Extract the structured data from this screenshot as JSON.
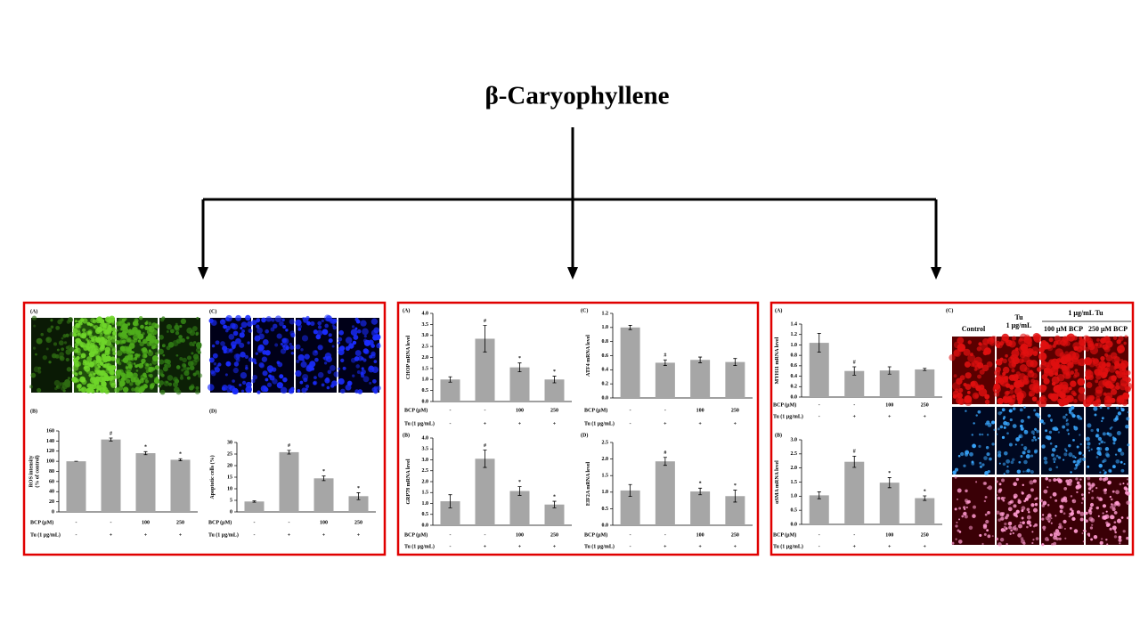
{
  "title": "β-Caryophyllene",
  "chart_data": [
    {
      "type": "bar",
      "label": "(B)",
      "y_label": "ROS intensity\n(% of control)",
      "ylim": [
        0,
        160
      ],
      "yticks": [
        0,
        20,
        40,
        60,
        80,
        100,
        120,
        140,
        160
      ],
      "values": [
        100,
        143,
        116,
        103
      ],
      "errors": [
        0,
        3,
        3,
        2
      ],
      "markers": [
        null,
        "#",
        "*",
        "*"
      ],
      "color": "#a6a6a6",
      "rows": [
        {
          "name": "BCP (μM)",
          "categories": [
            "-",
            "-",
            "100",
            "250"
          ]
        },
        {
          "name": "Tu (1 μg/mL)",
          "categories": [
            "-",
            "+",
            "+",
            "+"
          ]
        }
      ]
    },
    {
      "type": "bar",
      "label": "(D)",
      "y_label": "Apoptotic cells (%)",
      "ylim": [
        0,
        30
      ],
      "yticks": [
        0,
        5,
        10,
        15,
        20,
        25,
        30
      ],
      "values": [
        4.5,
        25.8,
        14.5,
        6.8
      ],
      "errors": [
        0.3,
        0.8,
        1.0,
        1.5
      ],
      "markers": [
        null,
        "#",
        "*",
        "*"
      ],
      "color": "#a6a6a6",
      "rows": [
        {
          "name": "BCP (μM)",
          "categories": [
            "-",
            "-",
            "100",
            "250"
          ]
        },
        {
          "name": "Tu (1 μg/mL)",
          "categories": [
            "-",
            "+",
            "+",
            "+"
          ]
        }
      ]
    },
    {
      "type": "bar",
      "label": "(A)",
      "y_label": "CHOP mRNA level",
      "ylim": [
        0,
        4
      ],
      "yticks": [
        {
          "value": 0,
          "label": "0.0"
        },
        0.5,
        {
          "value": 1,
          "label": "1.0"
        },
        1.5,
        {
          "value": 2,
          "label": "2.0"
        },
        2.5,
        {
          "value": 3,
          "label": "3.0"
        },
        3.5,
        {
          "value": 4,
          "label": "4.0"
        }
      ],
      "values": [
        1.0,
        2.85,
        1.55,
        1.0
      ],
      "errors": [
        0.12,
        0.6,
        0.2,
        0.15
      ],
      "markers": [
        null,
        "#",
        "*",
        "*"
      ],
      "color": "#a6a6a6",
      "rows": [
        {
          "name": "BCP (μM)",
          "categories": [
            "-",
            "-",
            "100",
            "250"
          ]
        },
        {
          "name": "Tu (1 μg/mL)",
          "categories": [
            "-",
            "+",
            "+",
            "+"
          ]
        }
      ]
    },
    {
      "type": "bar",
      "label": "(C)",
      "y_label": "ATF4 mRNA level",
      "ylim": [
        0,
        1.2
      ],
      "yticks": [
        {
          "value": 0,
          "label": "0.0"
        },
        0.2,
        0.4,
        0.6,
        0.8,
        {
          "value": 1,
          "label": "1.0"
        },
        1.2
      ],
      "values": [
        1.0,
        0.5,
        0.54,
        0.51
      ],
      "errors": [
        0.03,
        0.04,
        0.04,
        0.05
      ],
      "markers": [
        null,
        "#",
        null,
        null
      ],
      "color": "#a6a6a6",
      "rows": [
        {
          "name": "BCP (μM)",
          "categories": [
            "-",
            "-",
            "100",
            "250"
          ]
        },
        {
          "name": "Tu (1 μg/mL)",
          "categories": [
            "-",
            "+",
            "+",
            "+"
          ]
        }
      ]
    },
    {
      "type": "bar",
      "label": "(B)",
      "y_label": "GRP78 mRNA level",
      "ylim": [
        0,
        4
      ],
      "yticks": [
        {
          "value": 0,
          "label": "0.0"
        },
        0.5,
        {
          "value": 1,
          "label": "1.0"
        },
        1.5,
        {
          "value": 2,
          "label": "2.0"
        },
        2.5,
        {
          "value": 3,
          "label": "3.0"
        },
        3.5,
        {
          "value": 4,
          "label": "4.0"
        }
      ],
      "values": [
        1.1,
        3.05,
        1.57,
        0.95
      ],
      "errors": [
        0.3,
        0.4,
        0.2,
        0.15
      ],
      "markers": [
        null,
        "#",
        "*",
        "*"
      ],
      "color": "#a6a6a6",
      "rows": [
        {
          "name": "BCP (μM)",
          "categories": [
            "-",
            "-",
            "100",
            "250"
          ]
        },
        {
          "name": "Tu (1 μg/mL)",
          "categories": [
            "-",
            "+",
            "+",
            "+"
          ]
        }
      ]
    },
    {
      "type": "bar",
      "label": "(D)",
      "y_label": "EIF2A mRNA level",
      "ylim": [
        0,
        2.5
      ],
      "yticks": [
        {
          "value": 0,
          "label": "0.0"
        },
        0.5,
        {
          "value": 1,
          "label": "1.0"
        },
        1.5,
        {
          "value": 2,
          "label": "2.0"
        },
        2.5
      ],
      "values": [
        1.05,
        1.93,
        1.02,
        0.88
      ],
      "errors": [
        0.18,
        0.12,
        0.1,
        0.18
      ],
      "markers": [
        null,
        "#",
        "*",
        "*"
      ],
      "color": "#a6a6a6",
      "rows": [
        {
          "name": "BCP (μM)",
          "categories": [
            "-",
            "-",
            "100",
            "250"
          ]
        },
        {
          "name": "Tu (1 μg/mL)",
          "categories": [
            "-",
            "+",
            "+",
            "+"
          ]
        }
      ]
    },
    {
      "type": "bar",
      "label": "(A)",
      "y_label": "MYH11 mRNA level",
      "ylim": [
        0,
        1.4
      ],
      "yticks": [
        {
          "value": 0,
          "label": "0.0"
        },
        0.2,
        0.4,
        0.6,
        0.8,
        {
          "value": 1,
          "label": "1.0"
        },
        1.2,
        1.4
      ],
      "values": [
        1.04,
        0.5,
        0.51,
        0.53
      ],
      "errors": [
        0.18,
        0.08,
        0.07,
        0.02
      ],
      "markers": [
        null,
        "#",
        null,
        null
      ],
      "color": "#a6a6a6",
      "rows": [
        {
          "name": "BCP (μM)",
          "categories": [
            "-",
            "-",
            "100",
            "250"
          ]
        },
        {
          "name": "Tu (1 μg/mL)",
          "categories": [
            "-",
            "+",
            "+",
            "+"
          ]
        }
      ]
    },
    {
      "type": "bar",
      "label": "(B)",
      "y_label": "αSMA mRNA level",
      "ylim": [
        0,
        3
      ],
      "yticks": [
        {
          "value": 0,
          "label": "0.0"
        },
        0.5,
        {
          "value": 1,
          "label": "1.0"
        },
        1.5,
        {
          "value": 2,
          "label": "2.0"
        },
        2.5,
        {
          "value": 3,
          "label": "3.0"
        }
      ],
      "values": [
        1.03,
        2.22,
        1.48,
        0.93
      ],
      "errors": [
        0.12,
        0.2,
        0.18,
        0.08
      ],
      "markers": [
        null,
        "#",
        "*",
        "*"
      ],
      "color": "#a6a6a6",
      "rows": [
        {
          "name": "BCP (μM)",
          "categories": [
            "-",
            "-",
            "100",
            "250"
          ]
        },
        {
          "name": "Tu (1 μg/mL)",
          "categories": [
            "-",
            "+",
            "+",
            "+"
          ]
        }
      ]
    }
  ],
  "image_panels": [
    {
      "label": "(A)"
    },
    {
      "label": "(C)"
    },
    {
      "label": "(C)",
      "headers": [
        "Control",
        "Tu",
        "1 μg/mL",
        "1 μg/mL Tu",
        "100 μM BCP",
        "250 μM BCP"
      ]
    }
  ]
}
